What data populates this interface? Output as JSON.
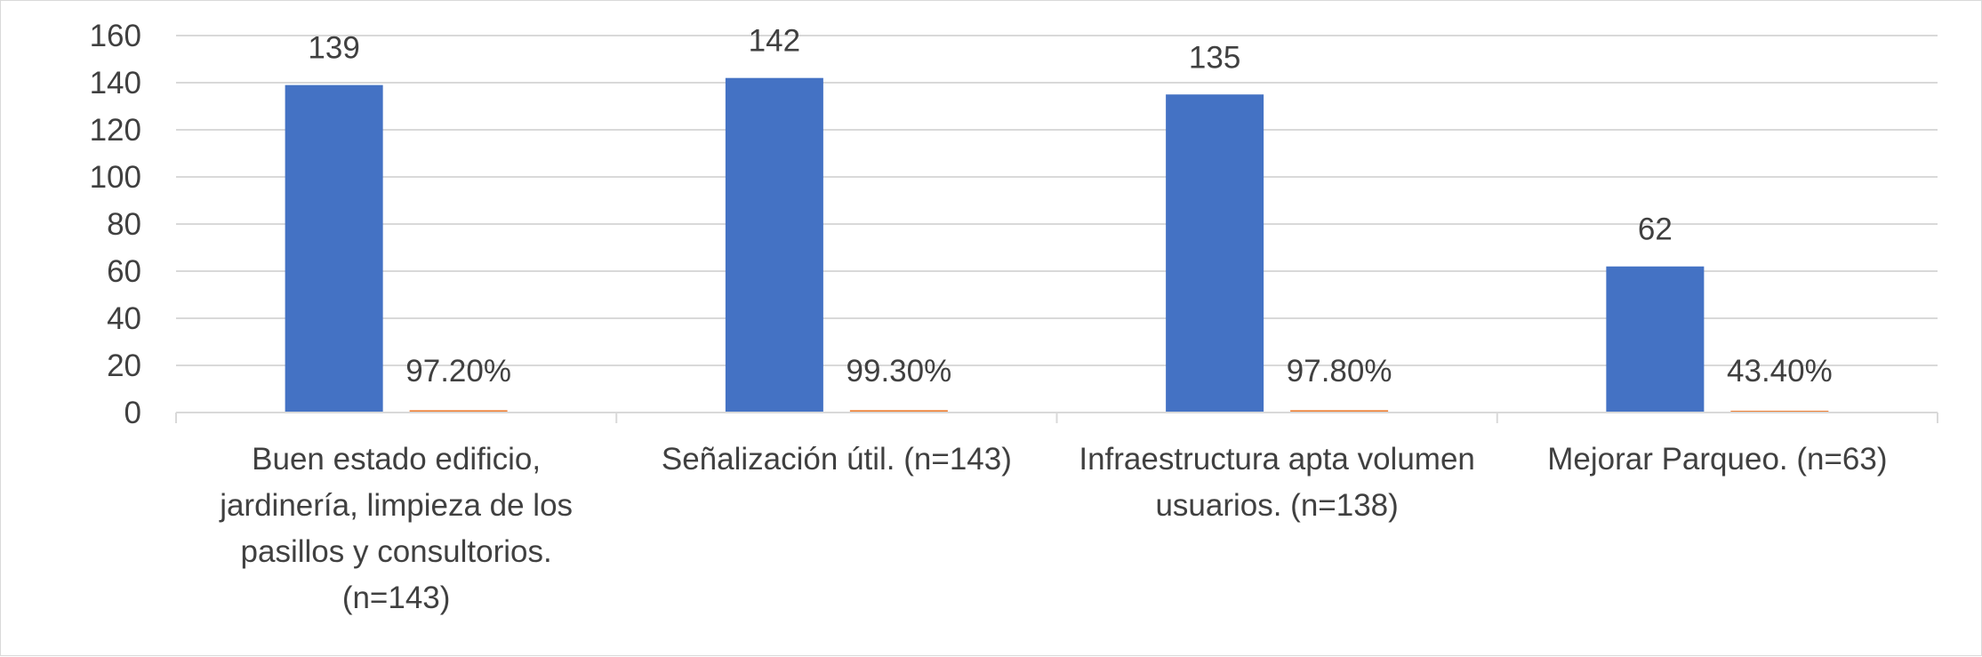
{
  "chart_data": {
    "type": "bar",
    "title": "",
    "xlabel": "",
    "ylabel": "",
    "ylim": [
      0,
      160
    ],
    "ytick_step": 20,
    "grid": true,
    "legend": "none",
    "categories": [
      [
        "Buen estado edificio,",
        "jardinería, limpieza de los",
        "pasillos y consultorios.",
        "(n=143)"
      ],
      [
        "Señalización útil. (n=143)"
      ],
      [
        "Infraestructura apta volumen",
        "usuarios. (n=138)"
      ],
      [
        "Mejorar Parqueo. (n=63)"
      ]
    ],
    "series": [
      {
        "values": [
          139,
          142,
          135,
          62
        ],
        "labels": [
          "139",
          "142",
          "135",
          "62"
        ],
        "color": "#4472c4"
      },
      {
        "values": [
          0.972,
          0.993,
          0.978,
          0.434
        ],
        "labels": [
          "97.20%",
          "99.30%",
          "97.80%",
          "43.40%"
        ],
        "color": "#ed7d31"
      }
    ]
  }
}
